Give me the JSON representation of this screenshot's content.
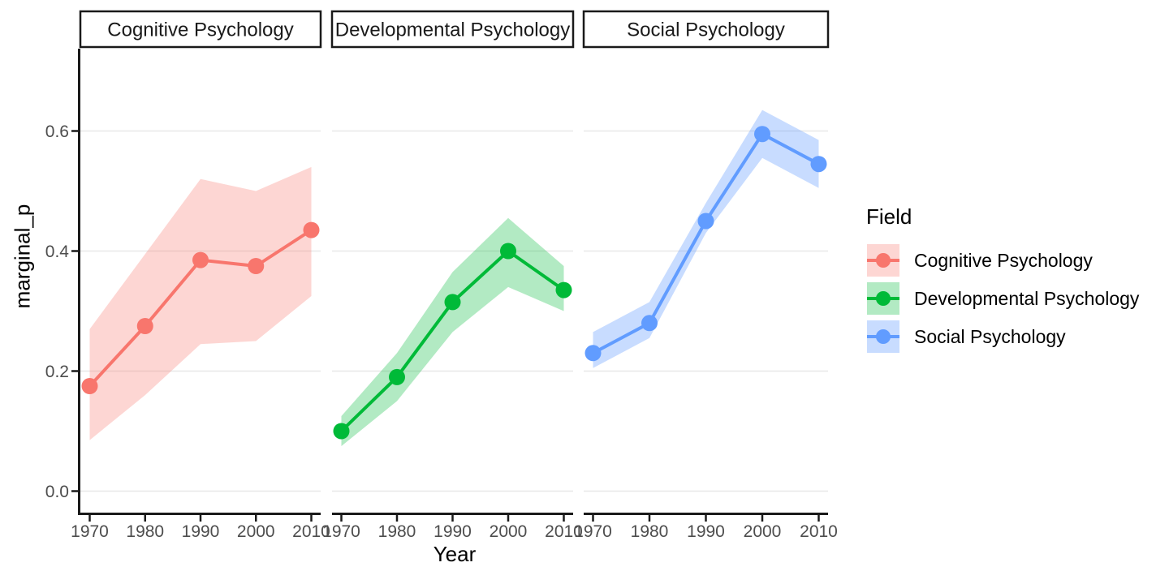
{
  "chart_data": {
    "type": "line",
    "subtype": "faceted-line-with-ribbon",
    "title": "",
    "xlabel": "Year",
    "ylabel": "marginal_p",
    "x": [
      1970,
      1980,
      1990,
      2000,
      2010
    ],
    "x_tick_labels": [
      "1970",
      "1980",
      "1990",
      "2000",
      "2010"
    ],
    "y_tick_values": [
      0.0,
      0.2,
      0.4,
      0.6
    ],
    "y_tick_labels": [
      "0.0",
      "0.2",
      "0.4",
      "0.6"
    ],
    "xlim": [
      1970,
      2010
    ],
    "ylim": [
      -0.036,
      0.735
    ],
    "grid": "horizontal major gridlines only, light gray, white background",
    "facets": [
      "Cognitive Psychology",
      "Developmental Psychology",
      "Social Psychology"
    ],
    "legend": {
      "title": "Field",
      "position": "right",
      "entries": [
        "Cognitive Psychology",
        "Developmental Psychology",
        "Social Psychology"
      ]
    },
    "series": [
      {
        "name": "Cognitive Psychology",
        "facet": "Cognitive Psychology",
        "color": "#F8766D",
        "fill": "rgba(248,118,109,0.3)",
        "values": [
          0.175,
          0.275,
          0.385,
          0.375,
          0.435
        ],
        "lower": [
          0.085,
          0.16,
          0.245,
          0.25,
          0.325
        ],
        "upper": [
          0.27,
          0.395,
          0.52,
          0.5,
          0.54
        ]
      },
      {
        "name": "Developmental Psychology",
        "facet": "Developmental Psychology",
        "color": "#00BA38",
        "fill": "rgba(0,186,56,0.3)",
        "values": [
          0.1,
          0.19,
          0.315,
          0.4,
          0.335
        ],
        "lower": [
          0.075,
          0.15,
          0.265,
          0.34,
          0.3
        ],
        "upper": [
          0.125,
          0.23,
          0.365,
          0.455,
          0.375
        ]
      },
      {
        "name": "Social Psychology",
        "facet": "Social Psychology",
        "color": "#619CFF",
        "fill": "rgba(97,156,255,0.35)",
        "values": [
          0.23,
          0.28,
          0.45,
          0.595,
          0.545
        ],
        "lower": [
          0.205,
          0.255,
          0.43,
          0.555,
          0.505
        ],
        "upper": [
          0.265,
          0.315,
          0.48,
          0.635,
          0.585
        ]
      }
    ]
  }
}
